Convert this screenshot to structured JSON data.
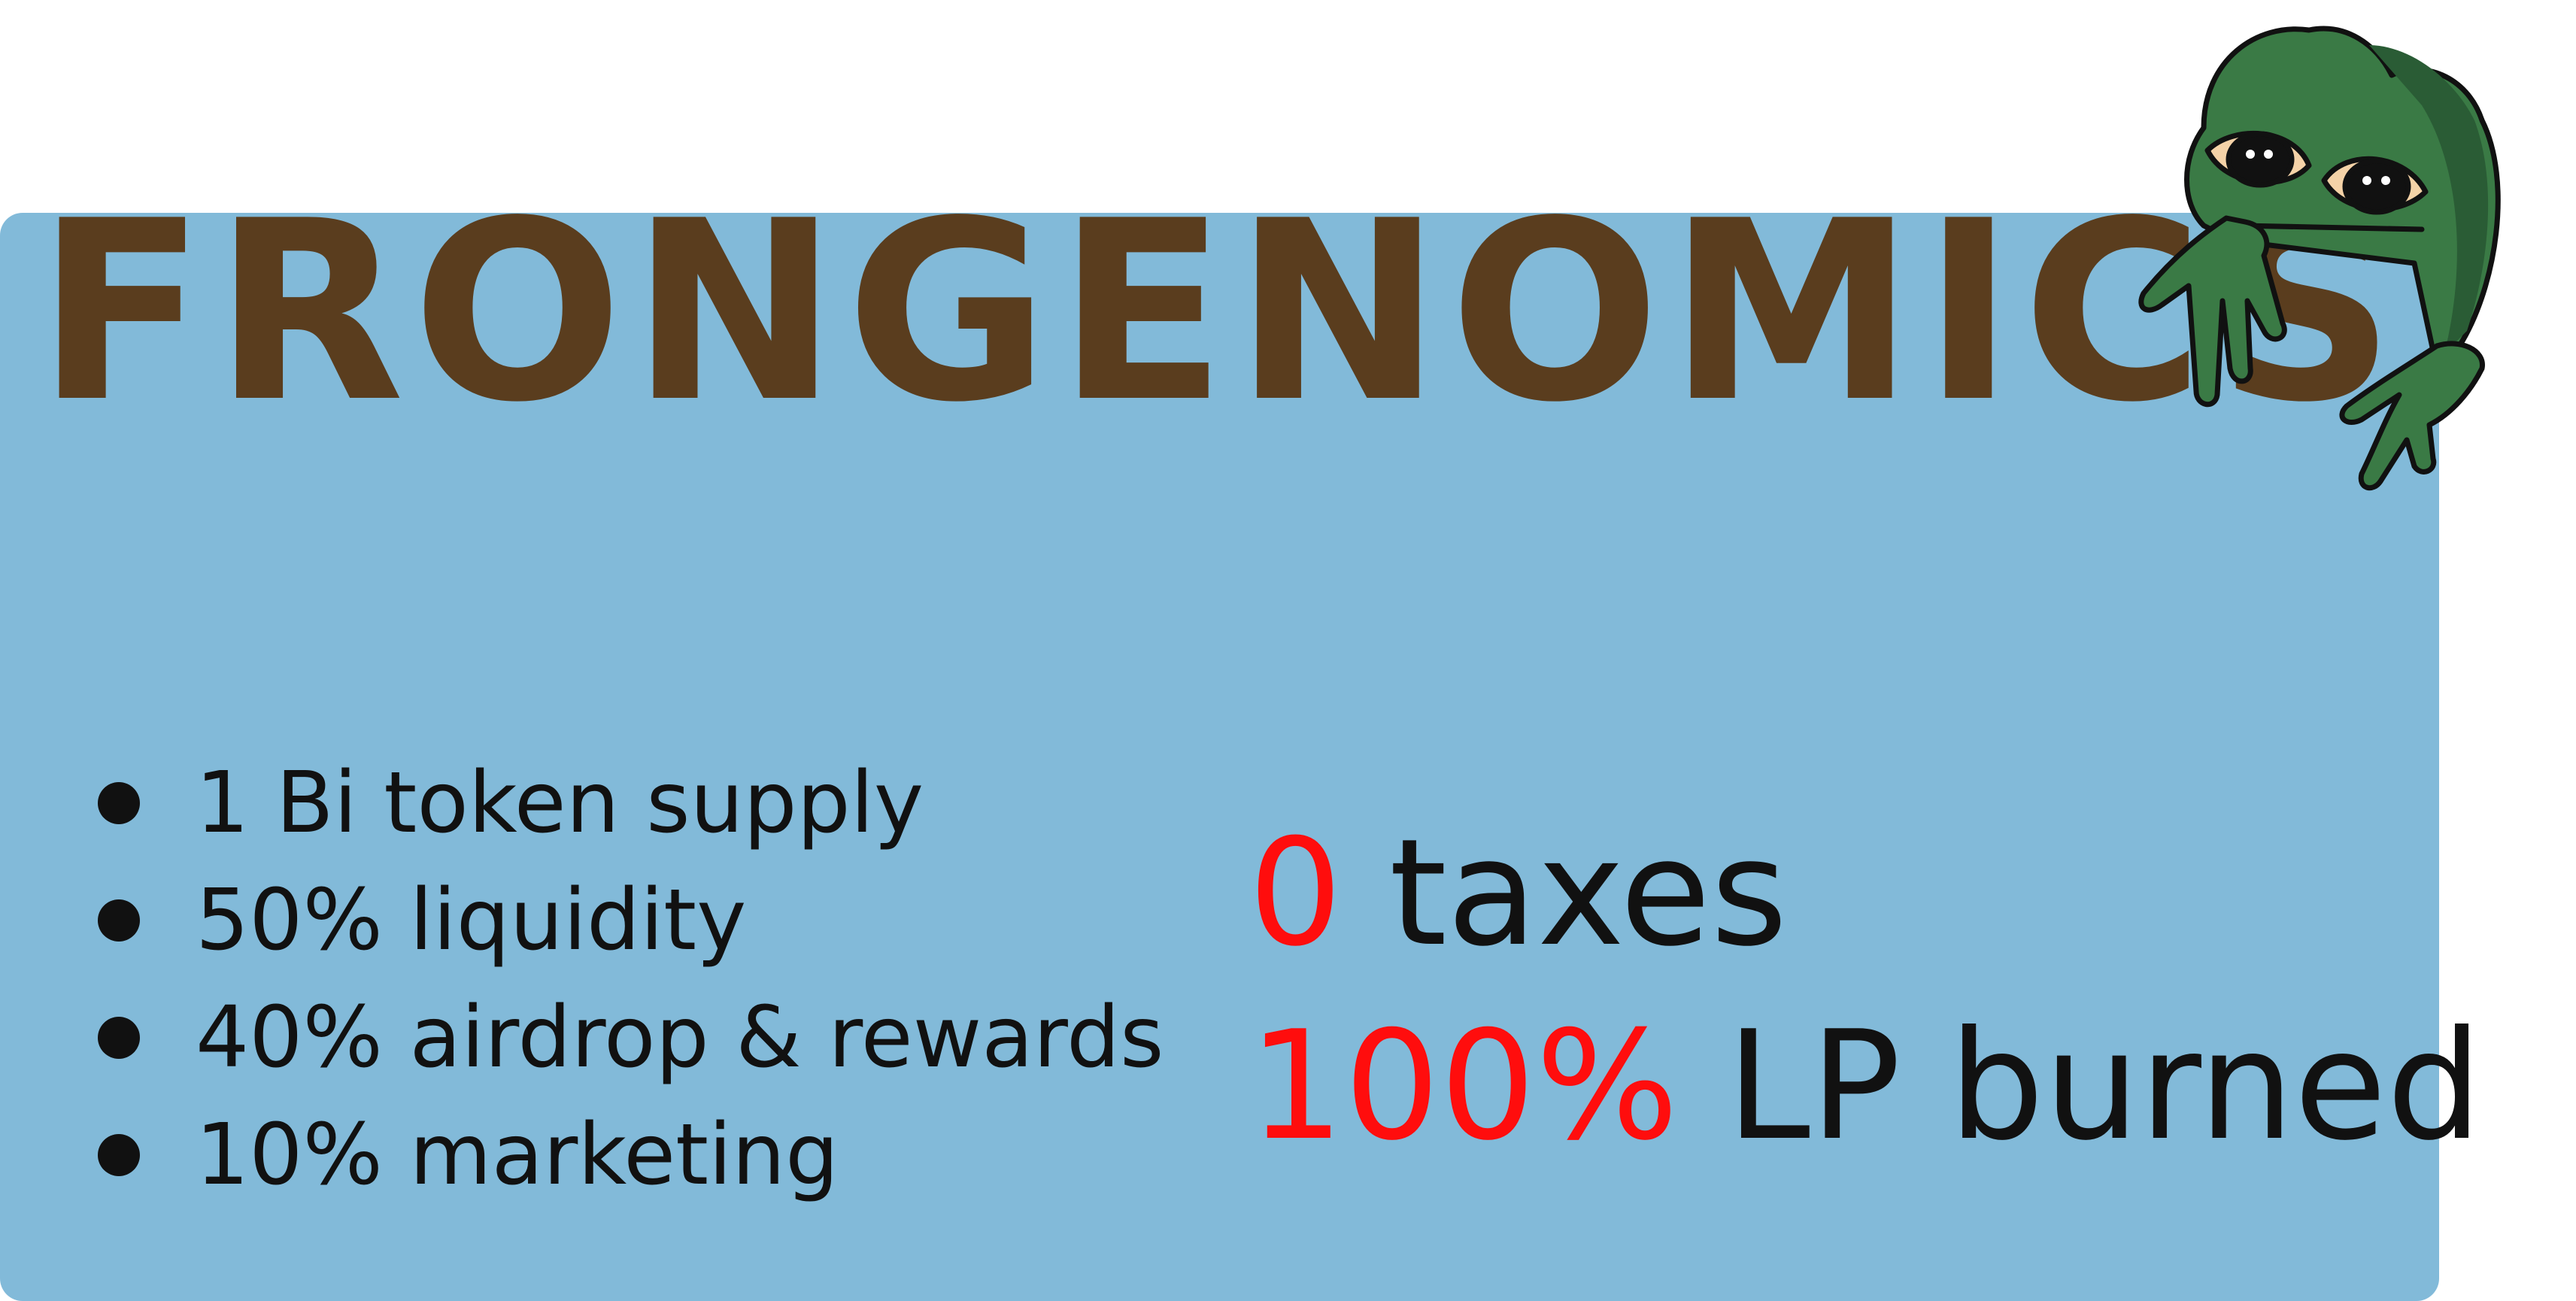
{
  "title": "FRONGENOMICS",
  "bullets": [
    {
      "text": "1 Bi token supply"
    },
    {
      "text": "50% liquidity"
    },
    {
      "text": "40% airdrop & rewards"
    },
    {
      "text": "10% marketing"
    }
  ],
  "stats": [
    {
      "highlight": "0",
      "text": "taxes"
    },
    {
      "highlight": "100%",
      "text": "LP burned"
    }
  ],
  "colors": {
    "panel": "#82bad9",
    "title": "#5a3d1e",
    "highlight": "#ff0d0d",
    "text": "#111111",
    "frog": "#3a7a45"
  },
  "mascot": "peeking-frog-icon"
}
